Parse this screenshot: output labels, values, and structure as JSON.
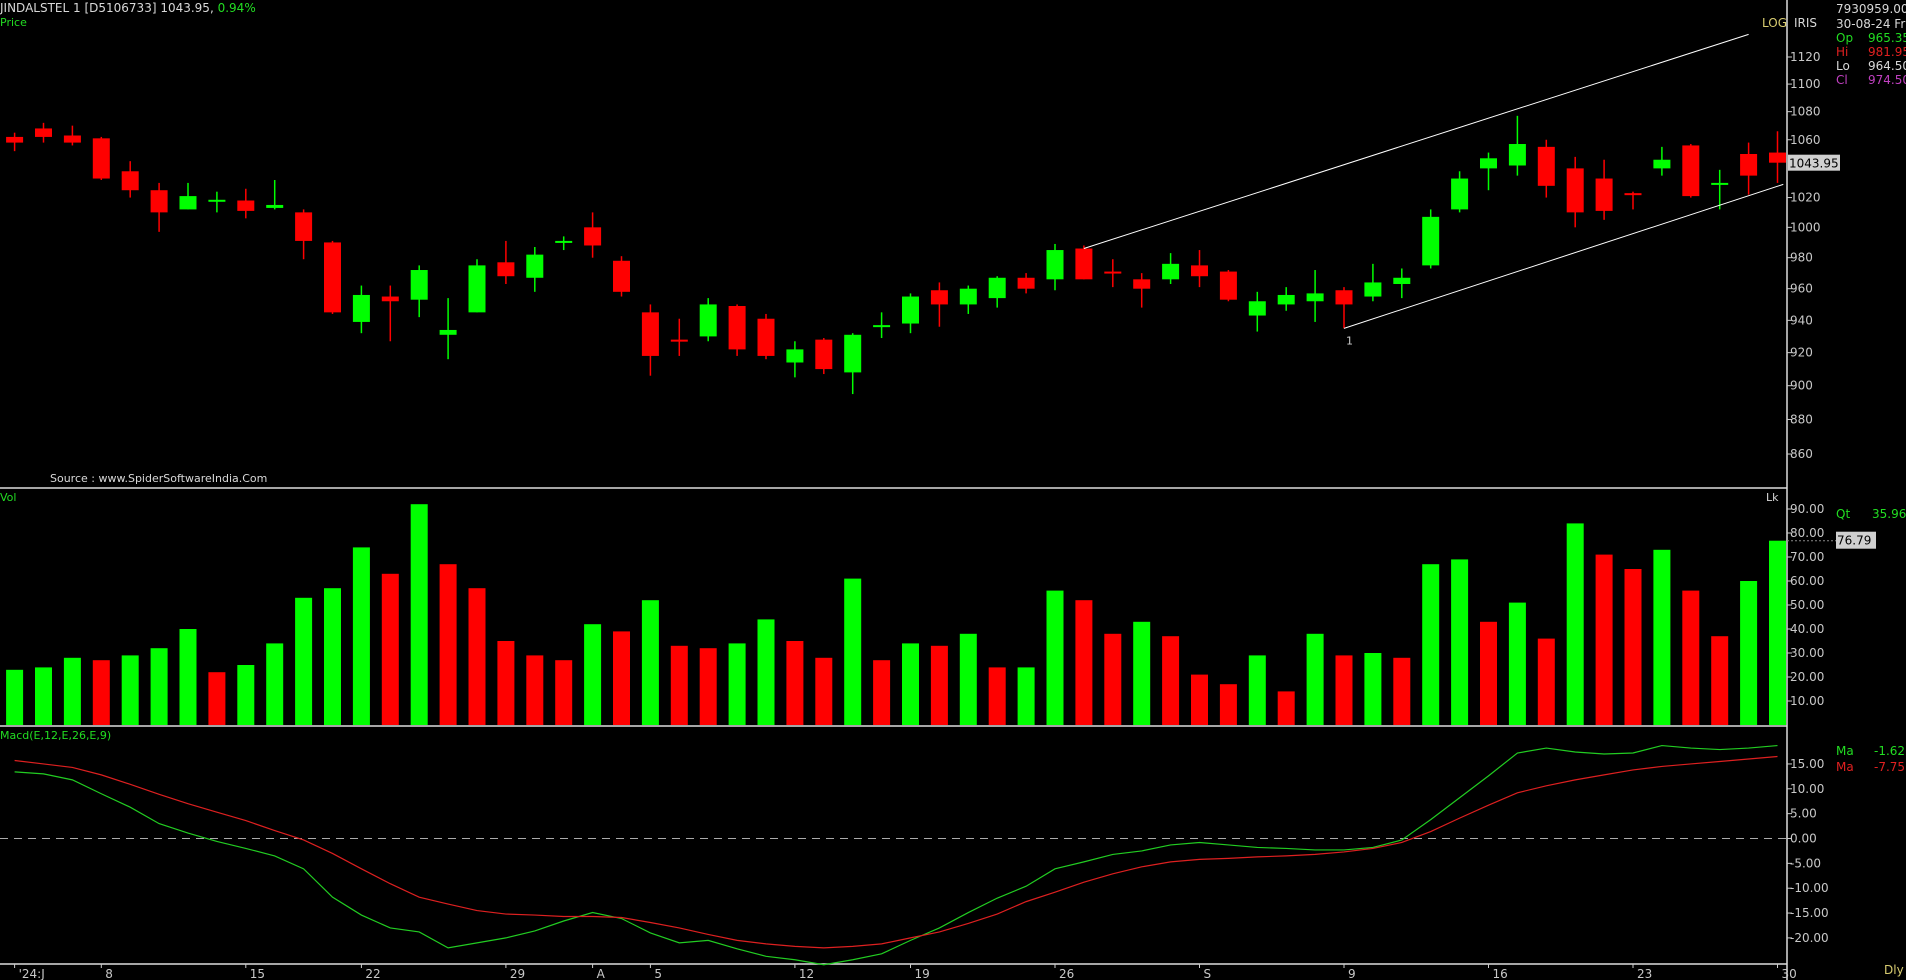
{
  "header": {
    "symbol_line": "JINDALSTEL 1 [D5106733] 1043.95,",
    "change": "0.94%",
    "price_label": "Price"
  },
  "flags": {
    "log": "LOG",
    "iris": "IRIS",
    "period": "Dly"
  },
  "info": {
    "volume_total": "7930959.00",
    "date": "30-08-24 Fri",
    "op_label": "Op",
    "op": "965.35",
    "hi_label": "Hi",
    "hi": "981.95",
    "lo_label": "Lo",
    "lo": "964.50",
    "cl_label": "Cl",
    "cl": "974.50",
    "qt_label": "Qt",
    "qt": "35.96",
    "ma1_label": "Ma",
    "ma1": "-1.62",
    "ma2_label": "Ma",
    "ma2": "-7.75"
  },
  "source": "Source : www.SpiderSoftwareIndia.Com",
  "colors": {
    "up": "#00ff00",
    "down": "#ff0000",
    "macd": "#22cc22",
    "signal": "#dd2020",
    "trendline": "#ffffff"
  },
  "chart_data": [
    {
      "type": "candlestick",
      "panel": "Price",
      "scale": "log",
      "yticks": [
        860,
        880,
        900,
        920,
        940,
        960,
        980,
        1000,
        1020,
        1060,
        1080,
        1100,
        1120
      ],
      "last_value_tag": "1043.95",
      "x_tick_labels": [
        {
          "bar": 0,
          "label": "'24:J"
        },
        {
          "bar": 3,
          "label": "8"
        },
        {
          "bar": 8,
          "label": "15"
        },
        {
          "bar": 12,
          "label": "22"
        },
        {
          "bar": 17,
          "label": "29"
        },
        {
          "bar": 20,
          "label": "A"
        },
        {
          "bar": 22,
          "label": "5"
        },
        {
          "bar": 27,
          "label": "12"
        },
        {
          "bar": 31,
          "label": "19"
        },
        {
          "bar": 36,
          "label": "26"
        },
        {
          "bar": 41,
          "label": "S"
        },
        {
          "bar": 46,
          "label": "9"
        },
        {
          "bar": 51,
          "label": "16"
        },
        {
          "bar": 56,
          "label": "23"
        },
        {
          "bar": 61,
          "label": "30"
        }
      ],
      "ohlc": [
        [
          1062,
          1065,
          1052,
          1058
        ],
        [
          1068,
          1072,
          1058,
          1062
        ],
        [
          1063,
          1070,
          1056,
          1058
        ],
        [
          1061,
          1062,
          1032,
          1033
        ],
        [
          1038,
          1045,
          1020,
          1025
        ],
        [
          1025,
          1030,
          997,
          1010
        ],
        [
          1012,
          1030,
          1012,
          1021
        ],
        [
          1018,
          1024,
          1010,
          1018.5
        ],
        [
          1018,
          1026,
          1006,
          1011
        ],
        [
          1013,
          1032,
          1012,
          1015
        ],
        [
          1010,
          1012,
          979,
          991
        ],
        [
          990,
          991,
          944,
          945
        ],
        [
          939,
          962,
          932,
          956
        ],
        [
          955,
          962,
          927,
          952
        ],
        [
          953,
          975,
          942,
          972
        ],
        [
          931,
          954,
          916,
          934
        ],
        [
          945,
          979,
          945,
          975
        ],
        [
          977,
          991,
          963,
          968
        ],
        [
          967,
          987,
          958,
          982
        ],
        [
          990.5,
          994,
          985,
          991
        ],
        [
          1000,
          1010,
          980,
          988
        ],
        [
          978,
          981,
          955,
          958
        ],
        [
          945,
          950,
          906,
          918
        ],
        [
          928,
          941,
          918,
          927
        ],
        [
          930,
          954,
          927,
          950
        ],
        [
          949,
          950,
          918,
          922
        ],
        [
          941,
          944,
          916,
          918
        ],
        [
          914,
          927,
          905,
          922
        ],
        [
          928,
          929,
          907,
          910
        ],
        [
          908,
          932,
          895,
          931
        ],
        [
          936.5,
          945,
          929,
          937
        ],
        [
          938,
          957,
          932,
          955
        ],
        [
          959,
          964,
          936,
          950
        ],
        [
          950,
          962,
          944,
          960
        ],
        [
          954,
          968,
          948,
          967
        ],
        [
          967,
          970,
          957,
          960
        ],
        [
          966,
          989,
          959,
          985
        ],
        [
          986,
          988,
          966,
          966
        ],
        [
          971,
          979,
          961,
          970
        ],
        [
          966,
          970,
          948,
          960
        ],
        [
          966,
          983,
          963,
          976
        ],
        [
          975,
          985,
          961,
          968
        ],
        [
          971,
          972,
          952,
          953
        ],
        [
          943,
          958,
          933,
          952
        ],
        [
          950,
          961,
          946,
          956
        ],
        [
          952,
          972,
          939,
          957
        ],
        [
          959,
          961,
          935,
          950
        ],
        [
          955,
          976,
          952,
          964
        ],
        [
          963,
          973,
          954,
          967
        ],
        [
          975,
          1012,
          973,
          1007
        ],
        [
          1012,
          1038,
          1010,
          1033
        ],
        [
          1040,
          1051,
          1025,
          1047
        ],
        [
          1042,
          1077,
          1035,
          1057
        ],
        [
          1055,
          1060,
          1020,
          1028
        ],
        [
          1040,
          1048,
          1000,
          1010
        ],
        [
          1033,
          1046,
          1005,
          1011
        ],
        [
          1023,
          1024,
          1012,
          1022
        ],
        [
          1040,
          1055,
          1035,
          1046
        ],
        [
          1056,
          1057,
          1020,
          1021
        ],
        [
          1029,
          1039,
          1012,
          1030
        ],
        [
          1050,
          1058,
          1022,
          1035
        ],
        [
          1051,
          1066,
          1030,
          1043.95
        ]
      ],
      "trendlines": [
        {
          "from_bar": 37,
          "from_price": 986,
          "to_bar": 60,
          "to_price": 1137,
          "label": ""
        },
        {
          "from_bar": 46,
          "from_price": 935,
          "to_bar": 61.2,
          "to_price": 1029,
          "label": "1"
        }
      ]
    },
    {
      "type": "bar",
      "panel": "Vol",
      "unit_label": "Lk",
      "yticks": [
        10,
        20,
        30,
        40,
        50,
        60,
        70,
        80,
        90
      ],
      "ylim": [
        0,
        90
      ],
      "last_value_tag": "76.79",
      "values": [
        23,
        24,
        28,
        27,
        29,
        32,
        40,
        22,
        25,
        34,
        53,
        57,
        74,
        63,
        92,
        67,
        57,
        35,
        29,
        27,
        42,
        39,
        52,
        33,
        32,
        34,
        44,
        35,
        28,
        61,
        27,
        34,
        33,
        38,
        24,
        24,
        56,
        52,
        38,
        43,
        37,
        21,
        17,
        29,
        14,
        38,
        29,
        30,
        28,
        67,
        69,
        43,
        51,
        36,
        84,
        71,
        65,
        73,
        56,
        37,
        60,
        76.79
      ],
      "colors": [
        "G",
        "G",
        "G",
        "R",
        "G",
        "G",
        "G",
        "R",
        "G",
        "G",
        "G",
        "G",
        "G",
        "R",
        "G",
        "R",
        "R",
        "R",
        "R",
        "R",
        "G",
        "R",
        "G",
        "R",
        "R",
        "G",
        "G",
        "R",
        "R",
        "G",
        "R",
        "G",
        "R",
        "G",
        "R",
        "G",
        "G",
        "R",
        "R",
        "G",
        "R",
        "R",
        "R",
        "G",
        "R",
        "G",
        "R",
        "G",
        "R",
        "G",
        "G",
        "R",
        "G",
        "R",
        "G",
        "R",
        "R",
        "G",
        "R",
        "R",
        "G",
        "G"
      ]
    },
    {
      "type": "line",
      "panel": "Macd(E,12,E,26,E,9)",
      "yticks": [
        -20,
        -15,
        -10,
        -5,
        0,
        5,
        10,
        15
      ],
      "zero_line": true,
      "series": [
        {
          "key": "macd",
          "values": [
            13.4,
            13,
            11.8,
            9,
            6.3,
            3,
            1.1,
            -0.6,
            -2,
            -3.5,
            -6.1,
            -11.8,
            -15.4,
            -18,
            -18.8,
            -22,
            -21,
            -20,
            -18.6,
            -16.6,
            -14.9,
            -16.1,
            -19,
            -21,
            -20.5,
            -22.2,
            -23.7,
            -24.4,
            -25.4,
            -24.4,
            -23.2,
            -20.5,
            -18,
            -14.9,
            -12,
            -9.6,
            -6.1,
            -4.7,
            -3.2,
            -2.5,
            -1.3,
            -0.8,
            -1.3,
            -1.8,
            -2,
            -2.3,
            -2.3,
            -1.8,
            -0.3,
            3.8,
            8.2,
            12.6,
            17.2,
            18.2,
            17.4,
            17,
            17.2,
            18.7,
            18.2,
            17.9,
            18.2,
            18.7
          ]
        },
        {
          "key": "signal",
          "values": [
            15.7,
            15,
            14.3,
            12.8,
            10.9,
            8.9,
            7,
            5.3,
            3.6,
            1.6,
            -0.3,
            -3,
            -6.1,
            -9.1,
            -11.8,
            -13.2,
            -14.5,
            -15.2,
            -15.4,
            -15.7,
            -15.7,
            -15.9,
            -16.9,
            -18,
            -19.3,
            -20.5,
            -21.2,
            -21.7,
            -22,
            -21.7,
            -21.2,
            -20,
            -18.8,
            -17.1,
            -15.2,
            -12.7,
            -10.8,
            -8.8,
            -7.1,
            -5.7,
            -4.7,
            -4.2,
            -4,
            -3.7,
            -3.5,
            -3.2,
            -2.7,
            -2,
            -0.8,
            1.4,
            4.1,
            6.7,
            9.2,
            10.6,
            11.8,
            12.8,
            13.8,
            14.5,
            15,
            15.5,
            16,
            16.5
          ]
        }
      ]
    }
  ]
}
